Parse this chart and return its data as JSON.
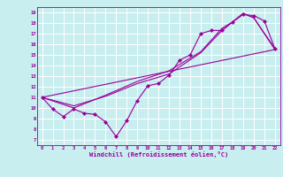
{
  "xlabel": "Windchill (Refroidissement éolien,°C)",
  "bg_color": "#c8eef0",
  "line_color": "#990099",
  "grid_color": "#ffffff",
  "xlim": [
    -0.5,
    22.5
  ],
  "ylim": [
    6.5,
    19.5
  ],
  "xticks": [
    0,
    1,
    2,
    3,
    4,
    5,
    6,
    7,
    8,
    9,
    10,
    11,
    12,
    13,
    14,
    15,
    16,
    17,
    18,
    19,
    20,
    21,
    22
  ],
  "yticks": [
    7,
    8,
    9,
    10,
    11,
    12,
    13,
    14,
    15,
    16,
    17,
    18,
    19
  ],
  "lines": [
    {
      "x": [
        0,
        1,
        2,
        3,
        4,
        5,
        6,
        7,
        8,
        9,
        10,
        11,
        12,
        13,
        14,
        15,
        16,
        17,
        18,
        19,
        20,
        21,
        22
      ],
      "y": [
        11,
        9.9,
        9.2,
        9.9,
        9.5,
        9.4,
        8.7,
        7.3,
        8.8,
        10.7,
        12.1,
        12.3,
        13.1,
        14.5,
        15.0,
        17.0,
        17.3,
        17.3,
        18.1,
        18.8,
        18.7,
        18.2,
        15.6
      ],
      "marker": true
    },
    {
      "x": [
        0,
        3,
        6,
        9,
        12,
        15,
        17,
        19,
        20,
        22
      ],
      "y": [
        11,
        10.2,
        11.1,
        12.3,
        13.2,
        15.2,
        17.3,
        18.9,
        18.5,
        15.5
      ],
      "marker": false
    },
    {
      "x": [
        0,
        3,
        6,
        9,
        12,
        15,
        16,
        17,
        18,
        19,
        20,
        22
      ],
      "y": [
        11,
        10.0,
        11.2,
        12.5,
        13.5,
        15.3,
        16.4,
        17.5,
        18.1,
        18.9,
        18.5,
        15.6
      ],
      "marker": false
    },
    {
      "x": [
        0,
        22
      ],
      "y": [
        11,
        15.5
      ],
      "marker": false
    }
  ]
}
